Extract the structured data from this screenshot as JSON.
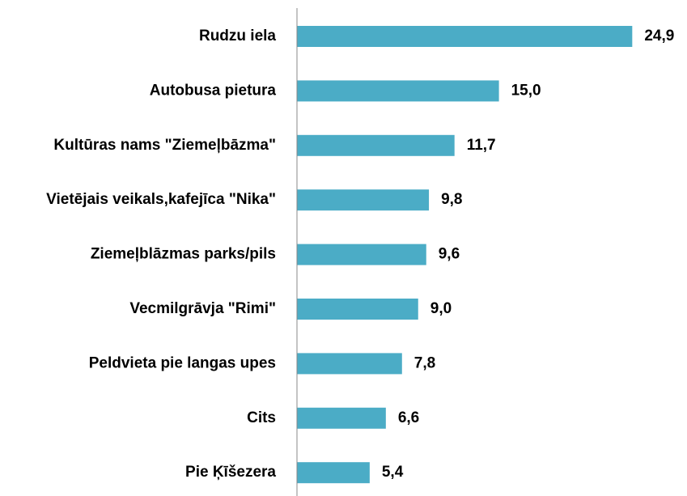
{
  "chart_data": {
    "type": "hbar",
    "categories": [
      "Rudzu iela",
      "Autobusa pietura",
      "Kultūras nams \"Ziemeļbāzma\"",
      "Vietējais veikals,kafejīca \"Nika\"",
      "Ziemeļblāzmas parks/pils",
      "Vecmilgrāvja \"Rimi\"",
      "Peldvieta pie langas upes",
      "Cits",
      "Pie Ķīšezera"
    ],
    "values": [
      24.9,
      15.0,
      11.7,
      9.8,
      9.6,
      9.0,
      7.8,
      6.6,
      5.4
    ],
    "value_labels": [
      "24,9",
      "15,0",
      "11,7",
      "9,8",
      "9,6",
      "9,0",
      "7,8",
      "6,6",
      "5,4"
    ],
    "color": "#4bacc6",
    "xlim": [
      0,
      25
    ]
  }
}
